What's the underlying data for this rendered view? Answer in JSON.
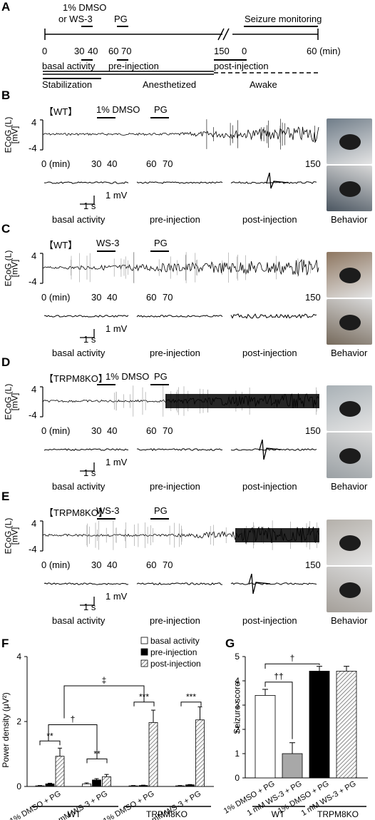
{
  "panels": {
    "A": "A",
    "B": "B",
    "C": "C",
    "D": "D",
    "E": "E",
    "F": "F",
    "G": "G"
  },
  "timeline": {
    "dmso_line1": "1% DMSO",
    "dmso_line2": "or WS-3",
    "pg": "PG",
    "seizure_monitoring": "Seizure monitoring",
    "ticks": [
      "0",
      "30",
      "40",
      "60",
      "70",
      "150",
      "0",
      "60 (min)"
    ],
    "phases": [
      "basal activity",
      "pre-injection",
      "post-injection"
    ],
    "states": [
      "Stabilization",
      "Anesthetized",
      "Awake"
    ]
  },
  "traces": [
    {
      "genotype": "【WT】",
      "drug": "1% DMSO",
      "pg": "PG"
    },
    {
      "genotype": "【WT】",
      "drug": "WS-3",
      "pg": "PG"
    },
    {
      "genotype": "【TRPM8KO】",
      "drug": "1% DMSO",
      "pg": "PG"
    },
    {
      "genotype": "【TRPM8KO】",
      "drug": "WS-3",
      "pg": "PG"
    }
  ],
  "trace_common": {
    "ylabel_line1": "ECoG (L)",
    "ylabel_line2": "[mV]",
    "y_top": "4",
    "y_bottom": "-4",
    "x_start": "0 (min)",
    "x_ticks": [
      "30",
      "40",
      "60",
      "70",
      "150"
    ],
    "scale_mv": "1 mV",
    "scale_s": "1 s",
    "segments": [
      "basal activity",
      "pre-injection",
      "post-injection"
    ],
    "behavior": "Behavior"
  },
  "chart_data": [
    {
      "type": "bar",
      "panel": "F",
      "ylabel": "Power density (μV²)",
      "ylim": [
        0,
        4
      ],
      "yticks": [
        "0",
        "2",
        "4"
      ],
      "categories": [
        "1% DMSO + PG",
        "1 mM WS-3 + PG",
        "1% DMSO + PG",
        "1 mM WS-3 + PG"
      ],
      "groups": [
        "WT",
        "TRPM8KO"
      ],
      "series": [
        {
          "name": "basal activity",
          "values": [
            0.02,
            0.08,
            0.02,
            0.02
          ],
          "errors": [
            0.01,
            0.03,
            0.01,
            0.01
          ],
          "color": "#ffffff"
        },
        {
          "name": "pre-injection",
          "values": [
            0.08,
            0.2,
            0.03,
            0.05
          ],
          "errors": [
            0.02,
            0.04,
            0.01,
            0.01
          ],
          "color": "#000000"
        },
        {
          "name": "post-injection",
          "values": [
            0.93,
            0.3,
            1.97,
            2.05
          ],
          "errors": [
            0.25,
            0.07,
            0.38,
            0.4
          ],
          "color": "#bdbdbd"
        }
      ],
      "annotations": [
        "**",
        "**",
        "***",
        "***",
        "†",
        "‡"
      ],
      "legend_position": "top-right"
    },
    {
      "type": "bar",
      "panel": "G",
      "ylabel": "Seizure score",
      "ylim": [
        0,
        5
      ],
      "yticks": [
        "0",
        "1",
        "2",
        "3",
        "4",
        "5"
      ],
      "categories": [
        "1% DMSO + PG",
        "1 mM WS-3 + PG",
        "1% DMSO + PG",
        "1 mM WS-3 + PG"
      ],
      "groups": [
        "WT",
        "TRPM8KO"
      ],
      "values": [
        3.4,
        1.0,
        4.4,
        4.4
      ],
      "errors": [
        0.25,
        0.45,
        0.2,
        0.2
      ],
      "colors": [
        "#ffffff",
        "#a8a8a8",
        "#000000",
        "#ffffff"
      ],
      "annotations": [
        "††",
        "†"
      ]
    }
  ]
}
